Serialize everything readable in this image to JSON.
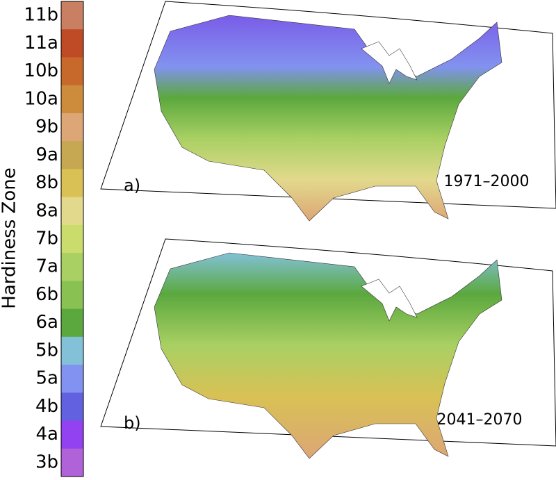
{
  "colorbar": {
    "title": "Hardiness Zone",
    "zones": [
      {
        "label": "11b",
        "color": "#c97f62"
      },
      {
        "label": "11a",
        "color": "#bf4a26"
      },
      {
        "label": "10b",
        "color": "#c8692c"
      },
      {
        "label": "10a",
        "color": "#cd8b3c"
      },
      {
        "label": "9b",
        "color": "#dca676"
      },
      {
        "label": "9a",
        "color": "#c6a752"
      },
      {
        "label": "8b",
        "color": "#d9c155"
      },
      {
        "label": "8a",
        "color": "#e2d98c"
      },
      {
        "label": "7b",
        "color": "#c9dc6c"
      },
      {
        "label": "7a",
        "color": "#a9d063"
      },
      {
        "label": "6b",
        "color": "#8ac153"
      },
      {
        "label": "6a",
        "color": "#5ba83e"
      },
      {
        "label": "5b",
        "color": "#82c1d8"
      },
      {
        "label": "5a",
        "color": "#8292f0"
      },
      {
        "label": "4b",
        "color": "#6262e0"
      },
      {
        "label": "4a",
        "color": "#9242f0"
      },
      {
        "label": "3b",
        "color": "#b062d8"
      }
    ]
  },
  "panels": [
    {
      "label": "a)",
      "period": "1971–2000"
    },
    {
      "label": "b)",
      "period": "2041–2070"
    }
  ]
}
